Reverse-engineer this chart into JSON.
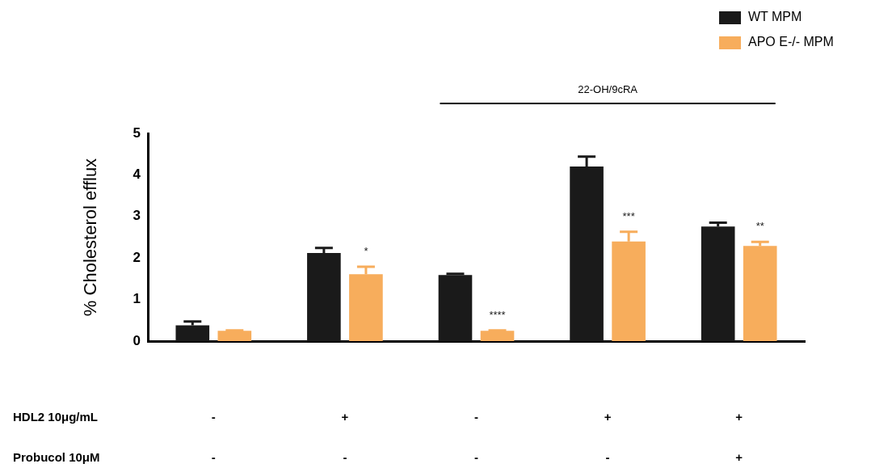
{
  "chart_data": {
    "type": "bar",
    "ylabel": "% Cholesterol efflux",
    "categories": [
      "-\n-",
      "+\n-",
      "-\n-",
      "+\n-",
      "+\n+"
    ],
    "series": [
      {
        "name": "WT MPM",
        "color": "#1a1a1a",
        "values": [
          0.38,
          2.12,
          1.59,
          4.2,
          2.76
        ],
        "errors": [
          [
            0.38,
            0.47
          ],
          [
            2.12,
            2.24
          ],
          [
            1.59,
            1.62
          ],
          [
            4.2,
            4.44
          ],
          [
            2.76,
            2.85
          ]
        ]
      },
      {
        "name": "APO E-/- MPM",
        "color": "#f7ad5c",
        "values": [
          0.25,
          1.61,
          0.25,
          2.4,
          2.29
        ],
        "errors": [
          [
            0.25,
            0.26
          ],
          [
            1.61,
            1.79
          ],
          [
            0.25,
            0.26
          ],
          [
            2.4,
            2.63
          ],
          [
            2.29,
            2.39
          ]
        ],
        "value_labels": [
          null,
          "*",
          "****",
          "***",
          "**"
        ]
      }
    ],
    "annotations": [
      "HDL2 10μg/mL",
      "Probucol 10μM",
      "22-OH/9cRA"
    ],
    "ylim": [
      0,
      5
    ],
    "yticks": [
      0,
      1,
      2,
      3,
      4,
      5
    ],
    "grid": false,
    "legend": "top right"
  }
}
